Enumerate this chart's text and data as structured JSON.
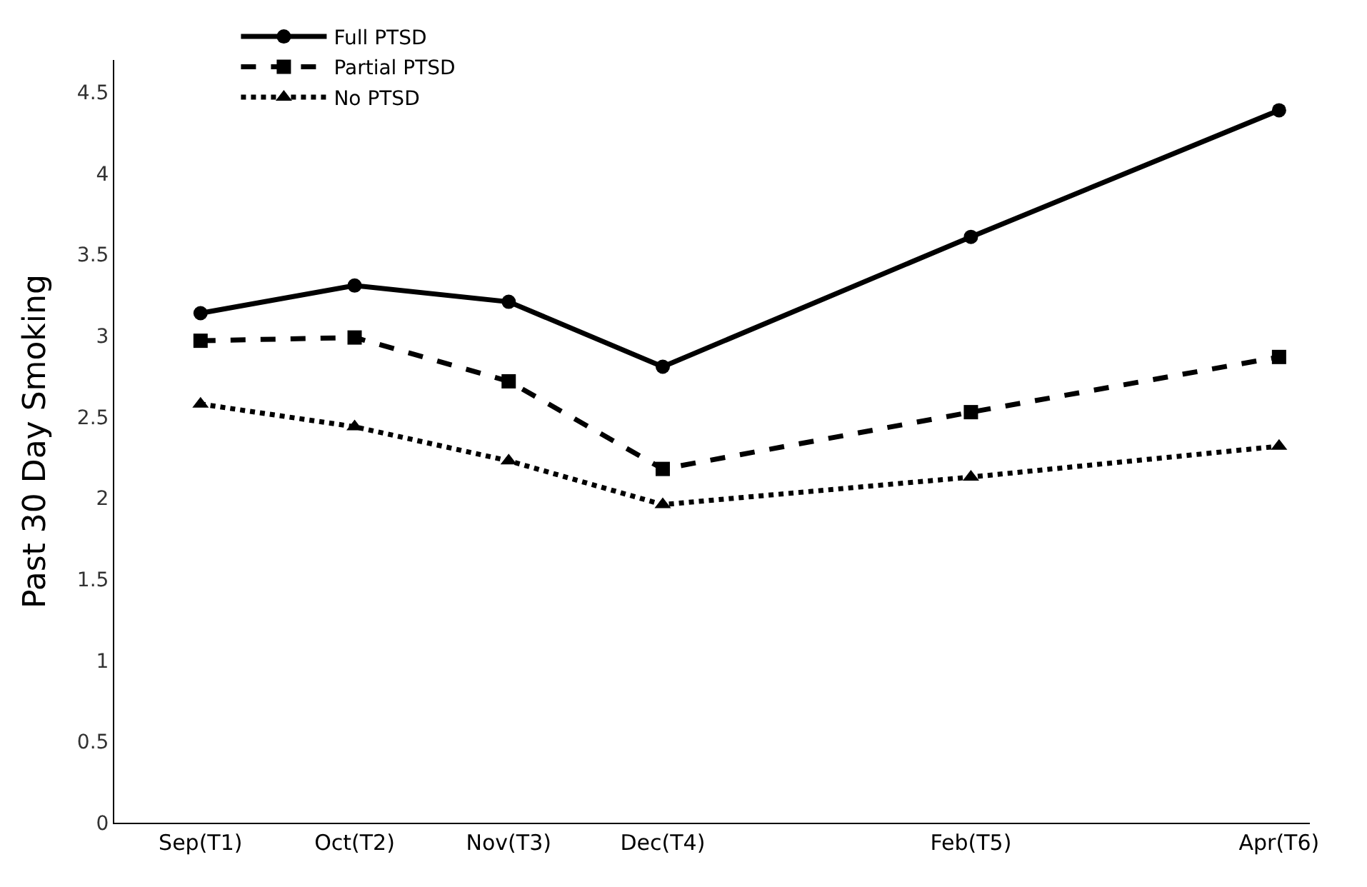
{
  "chart_data": {
    "type": "line",
    "ylabel": "Past 30 Day Smoking",
    "categories": [
      "Sep(T1)",
      "Oct(T2)",
      "Nov(T3)",
      "Dec(T4)",
      null,
      "Feb(T5)",
      null,
      "Apr(T6)"
    ],
    "ylim": [
      0,
      4.7
    ],
    "yticks": [
      0,
      0.5,
      1,
      1.5,
      2,
      2.5,
      3,
      3.5,
      4,
      4.5
    ],
    "legend": "top left",
    "series": [
      {
        "name": "Full PTSD",
        "color": "#000000",
        "marker": "circle",
        "line_style": "solid",
        "values": [
          3.14,
          3.31,
          3.21,
          2.81,
          null,
          3.61,
          null,
          4.39
        ]
      },
      {
        "name": "Partial PTSD",
        "color": "#000000",
        "marker": "square",
        "line_style": "dashed",
        "values": [
          2.97,
          2.99,
          2.72,
          2.18,
          null,
          2.53,
          null,
          2.87
        ]
      },
      {
        "name": "No PTSD",
        "color": "#000000",
        "marker": "triangle",
        "line_style": "dotted",
        "values": [
          2.58,
          2.44,
          2.23,
          1.96,
          null,
          2.13,
          null,
          2.32
        ]
      }
    ]
  }
}
